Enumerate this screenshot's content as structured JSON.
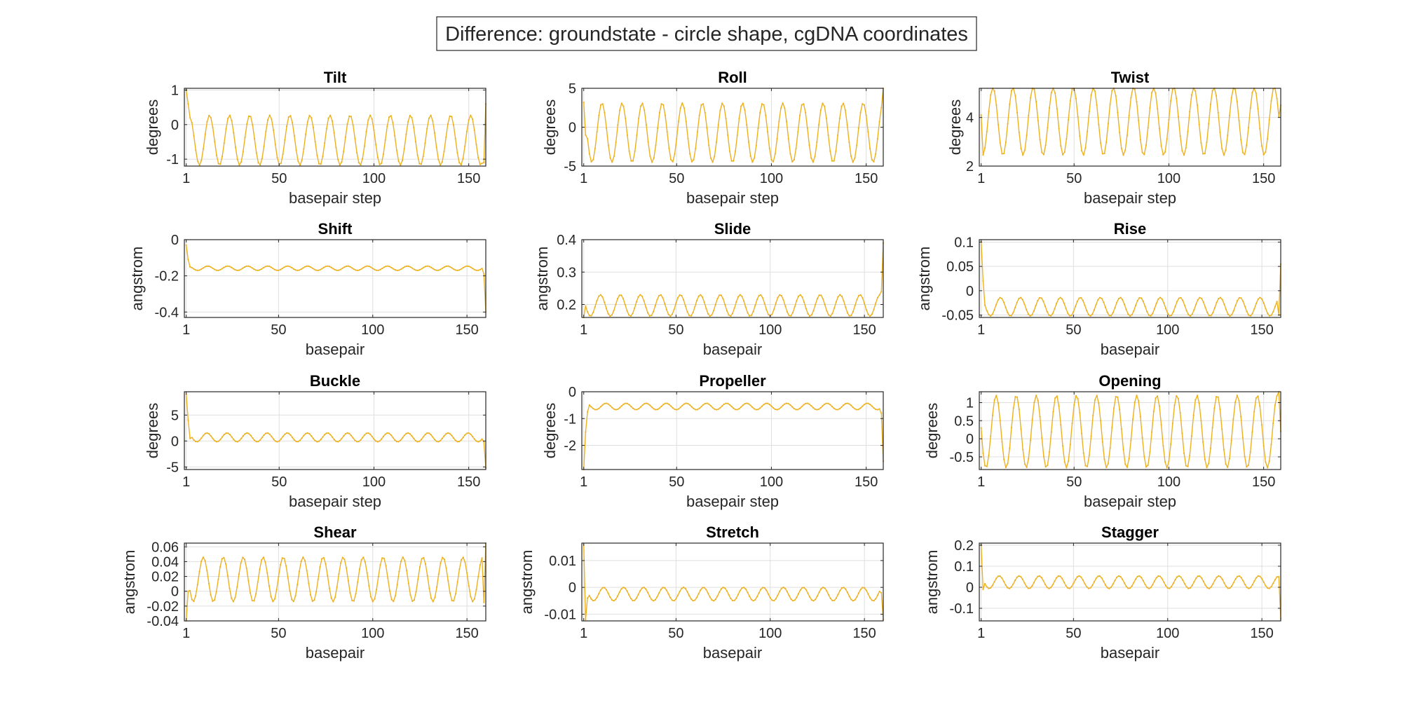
{
  "figure": {
    "title": "Difference: groundstate - circle shape, cgDNA coordinates"
  },
  "colors": {
    "line": "#EDB120",
    "grid": "#DFDFDF",
    "axes": "#262626",
    "background": "#FFFFFF"
  },
  "chart_data": [
    {
      "type": "line",
      "title": "Tilt",
      "xlabel": "basepair step",
      "ylabel": "degrees",
      "xlim": [
        0,
        159
      ],
      "ylim": [
        -1.2,
        1.05
      ],
      "xticks": [
        1,
        50,
        100,
        150
      ],
      "xtick_labels": [
        "1",
        "50",
        "100",
        "150"
      ],
      "yticks": [
        -1,
        0,
        1
      ],
      "ytick_labels": [
        "-1",
        "0",
        "1"
      ],
      "grid": true,
      "signal": {
        "period": 10.6,
        "mid": -0.45,
        "amp": 0.72,
        "phase": 0.0,
        "start": [
          1.0,
          0.6,
          0.2
        ],
        "end": [
          -1.1,
          0.6
        ]
      }
    },
    {
      "type": "line",
      "title": "Roll",
      "xlabel": "basepair step",
      "ylabel": "degrees",
      "xlim": [
        0,
        159
      ],
      "ylim": [
        -5,
        5
      ],
      "xticks": [
        1,
        50,
        100,
        150
      ],
      "xtick_labels": [
        "1",
        "50",
        "100",
        "150"
      ],
      "yticks": [
        -5,
        0,
        5
      ],
      "ytick_labels": [
        "-5",
        "0",
        "5"
      ],
      "grid": true,
      "signal": {
        "period": 10.6,
        "mid": -0.7,
        "amp": 3.8,
        "phase": 1.57,
        "start": [
          3.2,
          -1.0
        ],
        "end": [
          2.5,
          5.0
        ]
      }
    },
    {
      "type": "line",
      "title": "Twist",
      "xlabel": "basepair step",
      "ylabel": "degrees",
      "xlim": [
        0,
        159
      ],
      "ylim": [
        2,
        5.2
      ],
      "xticks": [
        1,
        50,
        100,
        150
      ],
      "xtick_labels": [
        "1",
        "50",
        "100",
        "150"
      ],
      "yticks": [
        2,
        4
      ],
      "ytick_labels": [
        "2",
        "4"
      ],
      "grid": true,
      "signal": {
        "period": 10.6,
        "mid": 3.85,
        "amp": 1.4,
        "phase": 3.6,
        "start": [
          4.1
        ],
        "end": [
          4.5
        ]
      }
    },
    {
      "type": "line",
      "title": "Shift",
      "xlabel": "basepair",
      "ylabel": "angstrom",
      "xlim": [
        0,
        160
      ],
      "ylim": [
        -0.43,
        0
      ],
      "xticks": [
        1,
        50,
        100,
        150
      ],
      "xtick_labels": [
        "1",
        "50",
        "100",
        "150"
      ],
      "yticks": [
        -0.4,
        -0.2,
        0
      ],
      "ytick_labels": [
        "-0.4",
        "-0.2",
        "0"
      ],
      "grid": true,
      "signal": {
        "period": 10.6,
        "mid": -0.158,
        "amp": 0.012,
        "phase": 0.5,
        "start": [
          -0.03,
          -0.11,
          -0.15
        ],
        "end": [
          -0.19,
          -0.4
        ]
      }
    },
    {
      "type": "line",
      "title": "Slide",
      "xlabel": "basepair",
      "ylabel": "angstrom",
      "xlim": [
        0,
        160
      ],
      "ylim": [
        0.16,
        0.4
      ],
      "xticks": [
        1,
        50,
        100,
        150
      ],
      "xtick_labels": [
        "1",
        "50",
        "100",
        "150"
      ],
      "yticks": [
        0.2,
        0.3,
        0.4
      ],
      "ytick_labels": [
        "0.2",
        "0.3",
        "0.4"
      ],
      "grid": true,
      "signal": {
        "period": 10.6,
        "mid": 0.197,
        "amp": 0.033,
        "phase": 2.0,
        "start": [
          0.16
        ],
        "end": [
          0.24,
          0.39
        ]
      }
    },
    {
      "type": "line",
      "title": "Rise",
      "xlabel": "basepair",
      "ylabel": "angstrom",
      "xlim": [
        0,
        160
      ],
      "ylim": [
        -0.055,
        0.105
      ],
      "xticks": [
        1,
        50,
        100,
        150
      ],
      "xtick_labels": [
        "1",
        "50",
        "100",
        "150"
      ],
      "yticks": [
        -0.05,
        0,
        0.05,
        0.1
      ],
      "ytick_labels": [
        "-0.05",
        "0",
        "0.05",
        "0.1"
      ],
      "grid": true,
      "signal": {
        "period": 10.6,
        "mid": -0.033,
        "amp": 0.019,
        "phase": 1.2,
        "start": [
          0.1,
          0.02,
          -0.03
        ],
        "end": [
          -0.05,
          0.055
        ]
      }
    },
    {
      "type": "line",
      "title": "Buckle",
      "xlabel": "basepair step",
      "ylabel": "degrees",
      "xlim": [
        0,
        159
      ],
      "ylim": [
        -5.5,
        9.5
      ],
      "xticks": [
        1,
        50,
        100,
        150
      ],
      "xtick_labels": [
        "1",
        "50",
        "100",
        "150"
      ],
      "yticks": [
        -5,
        0,
        5
      ],
      "ytick_labels": [
        "-5",
        "0",
        "5"
      ],
      "grid": true,
      "signal": {
        "period": 10.6,
        "mid": 0.7,
        "amp": 0.85,
        "phase": 0.8,
        "start": [
          9.0,
          4.0,
          0.5
        ],
        "end": [
          -0.2,
          -5.2
        ]
      }
    },
    {
      "type": "line",
      "title": "Propeller",
      "xlabel": "basepair step",
      "ylabel": "degrees",
      "xlim": [
        0,
        159
      ],
      "ylim": [
        -2.9,
        0
      ],
      "xticks": [
        1,
        50,
        100,
        150
      ],
      "xtick_labels": [
        "1",
        "50",
        "100",
        "150"
      ],
      "yticks": [
        -2,
        -1,
        0
      ],
      "ytick_labels": [
        "-2",
        "-1",
        "0"
      ],
      "grid": true,
      "signal": {
        "period": 10.6,
        "mid": -0.55,
        "amp": 0.12,
        "phase": 0.3,
        "start": [
          -2.9,
          -1.5,
          -0.75
        ],
        "end": [
          -0.8,
          -2.6
        ]
      }
    },
    {
      "type": "line",
      "title": "Opening",
      "xlabel": "basepair step",
      "ylabel": "degrees",
      "xlim": [
        0,
        159
      ],
      "ylim": [
        -0.85,
        1.3
      ],
      "xticks": [
        1,
        50,
        100,
        150
      ],
      "xtick_labels": [
        "1",
        "50",
        "100",
        "150"
      ],
      "yticks": [
        -0.5,
        0,
        0.5,
        1
      ],
      "ytick_labels": [
        "-0.5",
        "0",
        "0.5",
        "1"
      ],
      "grid": true,
      "signal": {
        "period": 10.6,
        "mid": 0.2,
        "amp": 1.0,
        "phase": 2.6,
        "start": [
          0.3
        ],
        "end": [
          1.3,
          0.2
        ]
      }
    },
    {
      "type": "line",
      "title": "Shear",
      "xlabel": "basepair",
      "ylabel": "angstrom",
      "xlim": [
        0,
        160
      ],
      "ylim": [
        -0.04,
        0.065
      ],
      "xticks": [
        1,
        50,
        100,
        150
      ],
      "xtick_labels": [
        "1",
        "50",
        "100",
        "150"
      ],
      "yticks": [
        -0.04,
        -0.02,
        0,
        0.02,
        0.04,
        0.06
      ],
      "ytick_labels": [
        "-0.04",
        "-0.02",
        "0",
        "0.02",
        "0.04",
        "0.06"
      ],
      "grid": true,
      "signal": {
        "period": 10.6,
        "mid": 0.016,
        "amp": 0.03,
        "phase": 1.9,
        "start": [
          -0.04,
          0.0
        ],
        "end": [
          -0.015,
          0.065
        ]
      }
    },
    {
      "type": "line",
      "title": "Stretch",
      "xlabel": "basepair",
      "ylabel": "angstrom",
      "xlim": [
        0,
        160
      ],
      "ylim": [
        -0.0125,
        0.0165
      ],
      "xticks": [
        1,
        50,
        100,
        150
      ],
      "xtick_labels": [
        "1",
        "50",
        "100",
        "150"
      ],
      "yticks": [
        -0.01,
        0,
        0.01
      ],
      "ytick_labels": [
        "-0.01",
        "0",
        "0.01"
      ],
      "grid": true,
      "signal": {
        "period": 10.6,
        "mid": -0.0025,
        "amp": 0.0025,
        "phase": 1.0,
        "start": [
          0.016,
          -0.012,
          -0.004
        ],
        "end": [
          -0.002,
          -0.012
        ]
      }
    },
    {
      "type": "line",
      "title": "Stagger",
      "xlabel": "basepair",
      "ylabel": "angstrom",
      "xlim": [
        0,
        160
      ],
      "ylim": [
        -0.16,
        0.21
      ],
      "xticks": [
        1,
        50,
        100,
        150
      ],
      "xtick_labels": [
        "1",
        "50",
        "100",
        "150"
      ],
      "yticks": [
        -0.1,
        0,
        0.1,
        0.2
      ],
      "ytick_labels": [
        "-0.1",
        "0",
        "0.1",
        "0.2"
      ],
      "grid": true,
      "signal": {
        "period": 10.6,
        "mid": 0.024,
        "amp": 0.03,
        "phase": 1.6,
        "start": [
          0.2,
          -0.01
        ],
        "end": [
          0.05,
          -0.15
        ]
      }
    }
  ]
}
